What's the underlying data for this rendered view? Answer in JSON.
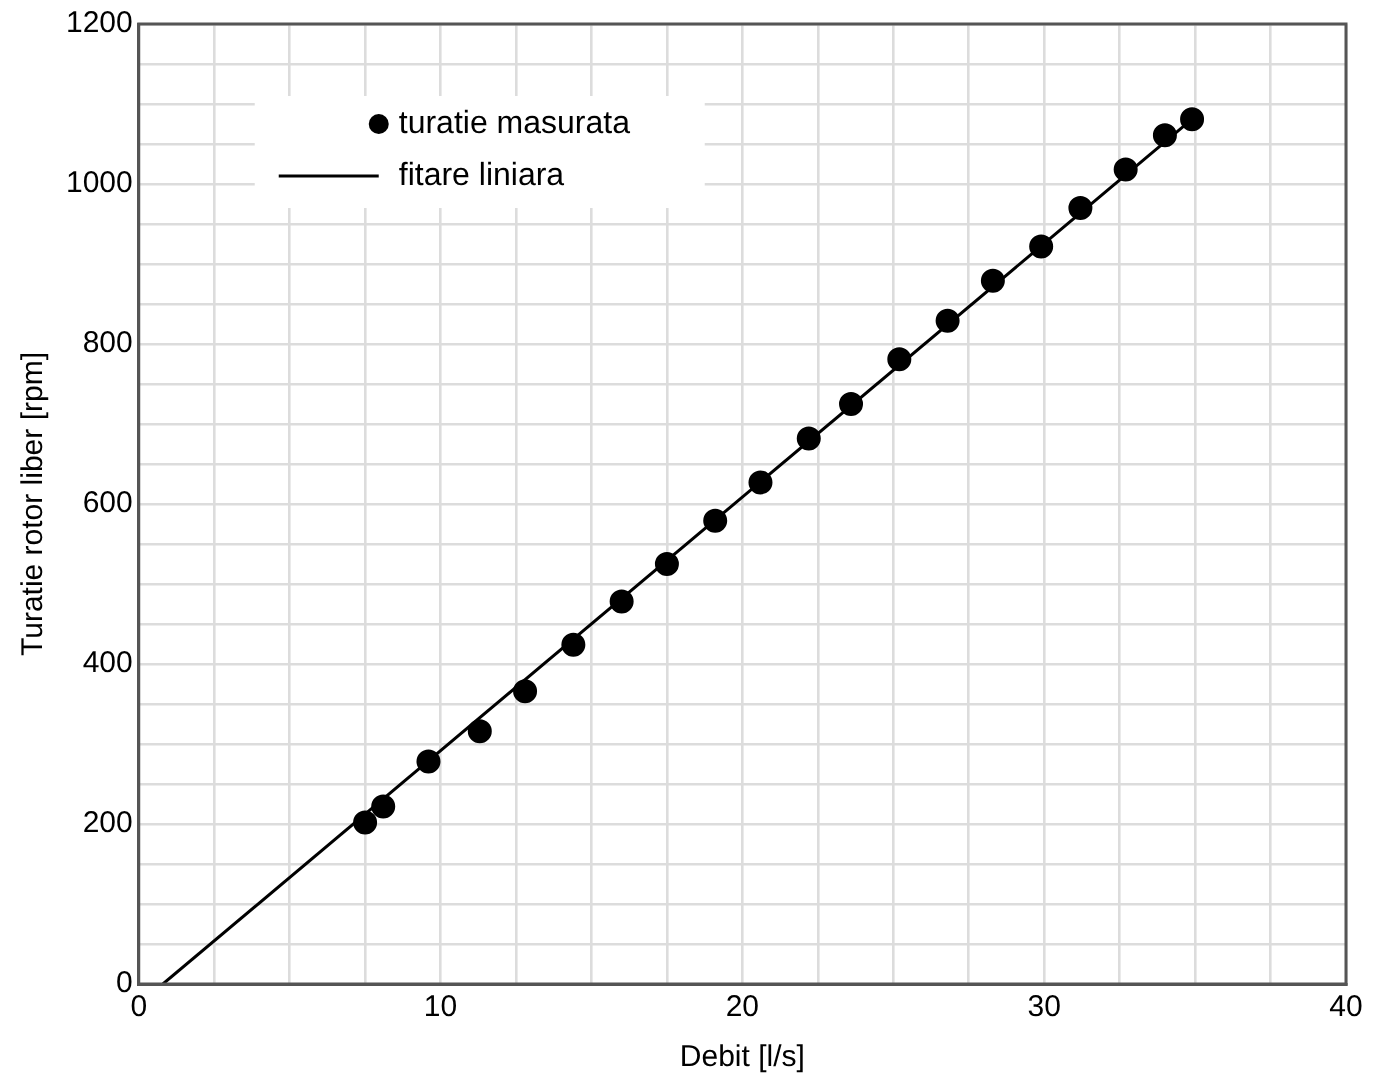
{
  "chart_data": {
    "type": "scatter",
    "xlabel": "Debit [l/s]",
    "ylabel": "Turatie rotor liber [rpm]",
    "x": [
      7.5,
      8.1,
      9.6,
      11.3,
      12.8,
      14.4,
      16.0,
      17.5,
      19.1,
      20.6,
      22.2,
      23.6,
      25.2,
      26.8,
      28.3,
      29.9,
      31.2,
      32.7,
      34.0,
      34.9
    ],
    "series": [
      {
        "name": "turatie masurata",
        "color": "#000000",
        "marker": "circle",
        "values": [
          202,
          222,
          278,
          316,
          366,
          424,
          478,
          525,
          579,
          627,
          682,
          725,
          781,
          829,
          879,
          922,
          970,
          1018,
          1061,
          1081
        ]
      },
      {
        "name": "fitare liniara",
        "type": "line",
        "color": "#000000",
        "marker": "none",
        "line_style": "solid",
        "x": [
          0.8,
          34.9
        ],
        "values": [
          0,
          1081
        ]
      }
    ],
    "xlim": [
      0,
      40
    ],
    "xticks": [
      0,
      {
        "value": 2.5,
        "label": null
      },
      {
        "value": 5,
        "label": null
      },
      {
        "value": 7.5,
        "label": null
      },
      10,
      {
        "value": 12.5,
        "label": null
      },
      {
        "value": 15,
        "label": null
      },
      {
        "value": 17.5,
        "label": null
      },
      20,
      {
        "value": 22.5,
        "label": null
      },
      {
        "value": 25,
        "label": null
      },
      {
        "value": 27.5,
        "label": null
      },
      30,
      {
        "value": 32.5,
        "label": null
      },
      {
        "value": 35,
        "label": null
      },
      {
        "value": 37.5,
        "label": null
      },
      40
    ],
    "ylim": [
      0,
      1200
    ],
    "yticks": [
      0,
      {
        "value": 50,
        "label": null
      },
      {
        "value": 100,
        "label": null
      },
      {
        "value": 150,
        "label": null
      },
      200,
      {
        "value": 250,
        "label": null
      },
      {
        "value": 300,
        "label": null
      },
      {
        "value": 350,
        "label": null
      },
      400,
      {
        "value": 450,
        "label": null
      },
      {
        "value": 500,
        "label": null
      },
      {
        "value": 550,
        "label": null
      },
      600,
      {
        "value": 650,
        "label": null
      },
      {
        "value": 700,
        "label": null
      },
      {
        "value": 750,
        "label": null
      },
      800,
      {
        "value": 850,
        "label": null
      },
      {
        "value": 900,
        "label": null
      },
      {
        "value": 950,
        "label": null
      },
      1000,
      {
        "value": 1050,
        "label": null
      },
      {
        "value": 1100,
        "label": null
      },
      {
        "value": 1150,
        "label": null
      },
      1200
    ],
    "grid": true,
    "legend": "top"
  }
}
